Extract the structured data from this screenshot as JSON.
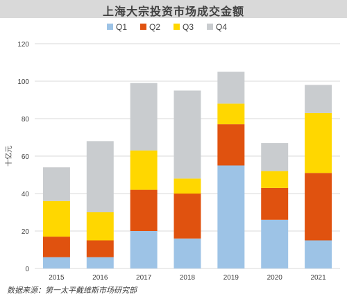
{
  "title": "上海大宗投资市场成交金额",
  "source_note": "数据来源：第一太平戴维斯市场研究部",
  "chart_data": {
    "type": "bar",
    "stacked": true,
    "title": "上海大宗投资市场成交金额",
    "xlabel": "",
    "ylabel": "十亿元",
    "ylim": [
      0,
      120
    ],
    "yticks": [
      0,
      20,
      40,
      60,
      80,
      100,
      120
    ],
    "grid": true,
    "legend_position": "top",
    "categories": [
      "2015",
      "2016",
      "2017",
      "2018",
      "2019",
      "2020",
      "2021"
    ],
    "series": [
      {
        "name": "Q1",
        "color": "#9dc3e6",
        "values": [
          6,
          6,
          20,
          16,
          55,
          26,
          15
        ]
      },
      {
        "name": "Q2",
        "color": "#e0520f",
        "values": [
          11,
          9,
          22,
          24,
          22,
          17,
          36
        ]
      },
      {
        "name": "Q3",
        "color": "#ffd700",
        "values": [
          19,
          15,
          21,
          8,
          11,
          9,
          32
        ]
      },
      {
        "name": "Q4",
        "color": "#c9cccf",
        "values": [
          18,
          38,
          36,
          47,
          17,
          15,
          15
        ]
      }
    ]
  }
}
